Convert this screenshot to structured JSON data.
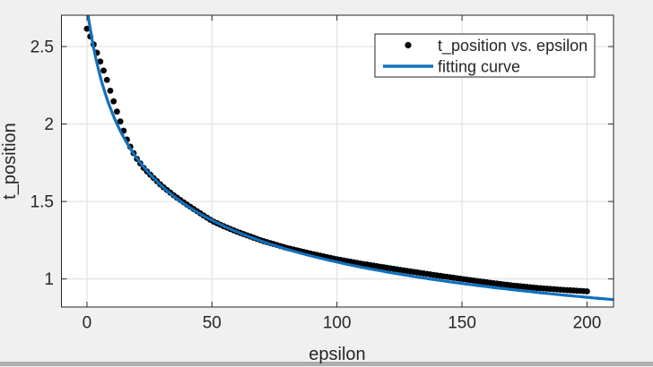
{
  "window": {
    "background": "#f0f0f0",
    "bottom_edge_color": "#aeaeae"
  },
  "plot": {
    "background": "#ffffff",
    "border_color": "#262626",
    "grid_color": "#dedede",
    "tick_color": "#262626",
    "tick_length": 6
  },
  "legend": {
    "background": "#ffffff",
    "border_color": "#262626",
    "entries": [
      {
        "label": "t_position vs. epsilon",
        "marker": "dot",
        "color": "#000000"
      },
      {
        "label": "fitting curve",
        "marker": "line",
        "color": "#1170be"
      }
    ]
  },
  "chart_data": {
    "type": "scatter",
    "title": "",
    "xlabel": "epsilon",
    "ylabel": "t_position",
    "xlim": [
      -10.2,
      210.6
    ],
    "ylim": [
      0.8188,
      2.7023
    ],
    "x_ticks": [
      0,
      50,
      100,
      150,
      200
    ],
    "x_tick_labels": [
      "0",
      "50",
      "100",
      "150",
      "200"
    ],
    "y_ticks": [
      1,
      1.5,
      2,
      2.5
    ],
    "y_tick_labels": [
      "1",
      "1.5",
      "2",
      "2.5"
    ],
    "grid": true,
    "legend_position": "northeast",
    "series": [
      {
        "name": "t_position vs. epsilon",
        "type": "scatter",
        "color": "#000000",
        "marker": "filled-circle",
        "marker_radius": 3.4,
        "x_start": 0,
        "x_end": 200,
        "n_points": 151,
        "anchor_points": [
          [
            0,
            2.615
          ],
          [
            2,
            2.54
          ],
          [
            4,
            2.46
          ],
          [
            6,
            2.375
          ],
          [
            8,
            2.285
          ],
          [
            10,
            2.18
          ],
          [
            12,
            2.08
          ],
          [
            14,
            1.985
          ],
          [
            16,
            1.9
          ],
          [
            18,
            1.83
          ],
          [
            20,
            1.775
          ],
          [
            23,
            1.71
          ],
          [
            26,
            1.662
          ],
          [
            30,
            1.6
          ],
          [
            35,
            1.536
          ],
          [
            40,
            1.48
          ],
          [
            45,
            1.427
          ],
          [
            50,
            1.375
          ],
          [
            55,
            1.338
          ],
          [
            60,
            1.305
          ],
          [
            70,
            1.247
          ],
          [
            80,
            1.2
          ],
          [
            90,
            1.162
          ],
          [
            100,
            1.127
          ],
          [
            110,
            1.098
          ],
          [
            120,
            1.072
          ],
          [
            130,
            1.047
          ],
          [
            140,
            1.023
          ],
          [
            150,
            1.0
          ],
          [
            160,
            0.978
          ],
          [
            170,
            0.958
          ],
          [
            180,
            0.942
          ],
          [
            190,
            0.93
          ],
          [
            200,
            0.92
          ]
        ]
      },
      {
        "name": "fitting curve",
        "type": "line",
        "color": "#1170be",
        "line_width": 3.2,
        "model": "t(eps) = a*(eps+c)^(-b)",
        "a": 5.71,
        "b": 0.35,
        "c": 8,
        "x_range": [
          -1.5,
          210.6
        ]
      }
    ]
  }
}
